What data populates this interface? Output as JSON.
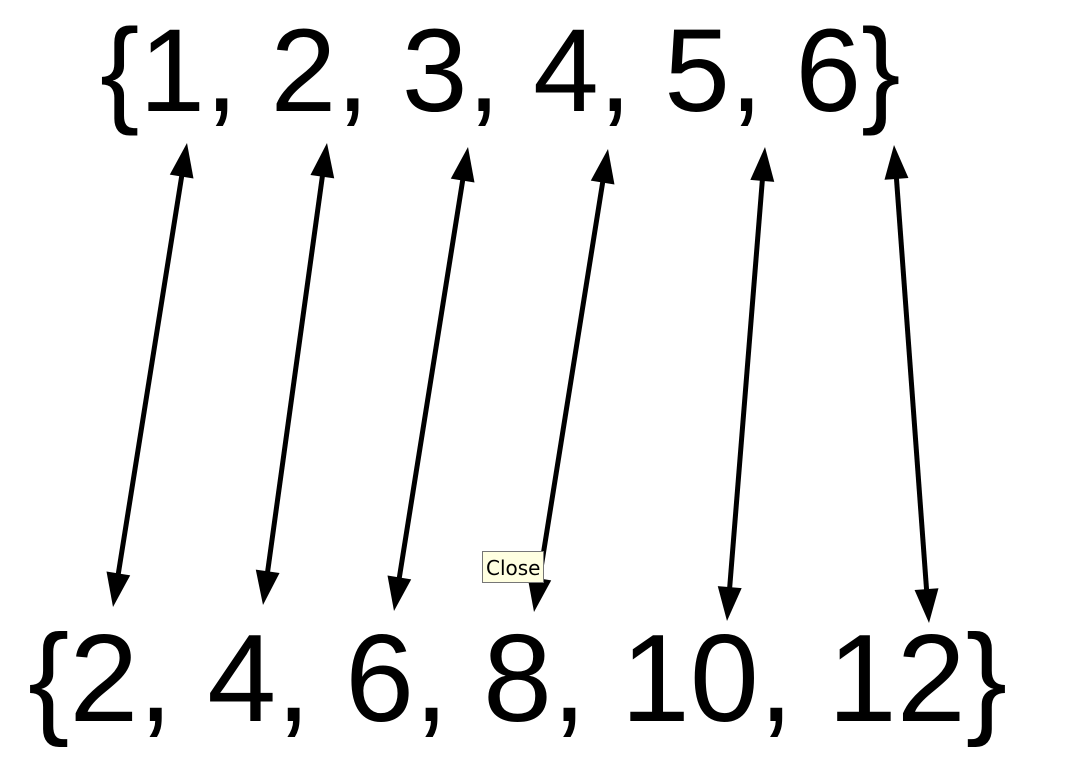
{
  "top_set": {
    "open_brace": "{",
    "close_brace": "}",
    "separator": ", ",
    "elements": [
      "1",
      "2",
      "3",
      "4",
      "5",
      "6"
    ]
  },
  "bottom_set": {
    "open_brace": "{",
    "close_brace": "}",
    "separator": ", ",
    "elements": [
      "2",
      "4",
      "6",
      "8",
      "10",
      "12"
    ]
  },
  "mapping": {
    "style": "double-headed arrows",
    "pairs": [
      [
        "1",
        "2"
      ],
      [
        "2",
        "4"
      ],
      [
        "3",
        "6"
      ],
      [
        "4",
        "8"
      ],
      [
        "5",
        "10"
      ],
      [
        "6",
        "12"
      ]
    ]
  },
  "tooltip": {
    "label": "Close"
  },
  "colors": {
    "text": "#000000",
    "arrow": "#000000",
    "tooltip_background": "#ffffe1",
    "tooltip_border": "#767676"
  }
}
